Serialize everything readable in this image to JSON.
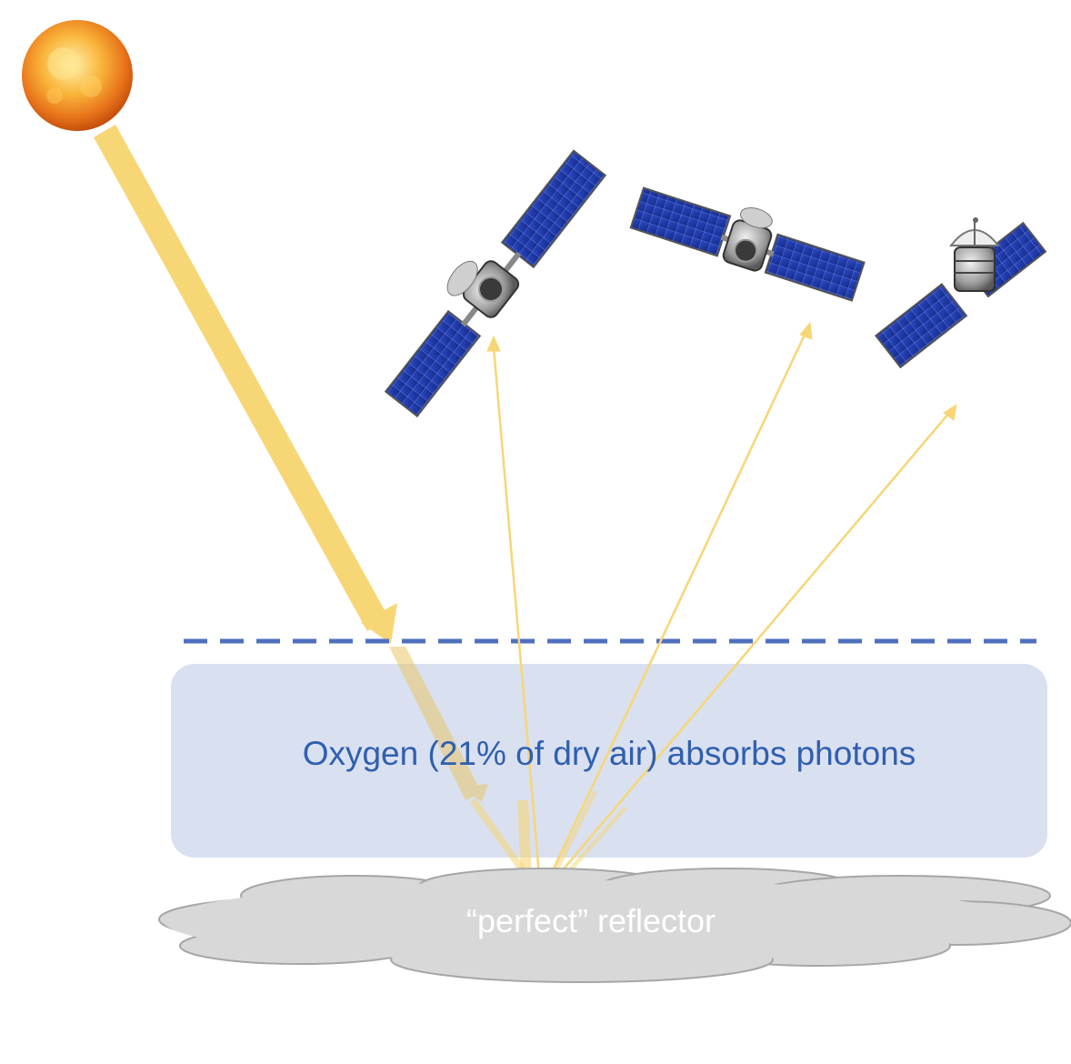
{
  "colors": {
    "beam": "#f7d676",
    "atmosphere_band": "#d9e0f0",
    "atmosphere_boundary": "#4f6fbf",
    "oxygen_text": "#2f5faf",
    "cloud": "#d8d8d8",
    "cloud_outline": "#a6a6a6",
    "reflector_text": "#ffffff",
    "solar_panel": "#1f3aa8"
  },
  "labels": {
    "oxygen": "Oxygen (21% of dry air) absorbs photons",
    "reflector": "“perfect” reflector"
  },
  "icons": {
    "sun": "sun-icon",
    "satellites": [
      "satellite-icon",
      "satellite-icon",
      "satellite-with-dish-icon"
    ],
    "cloud": "cloud-icon"
  }
}
